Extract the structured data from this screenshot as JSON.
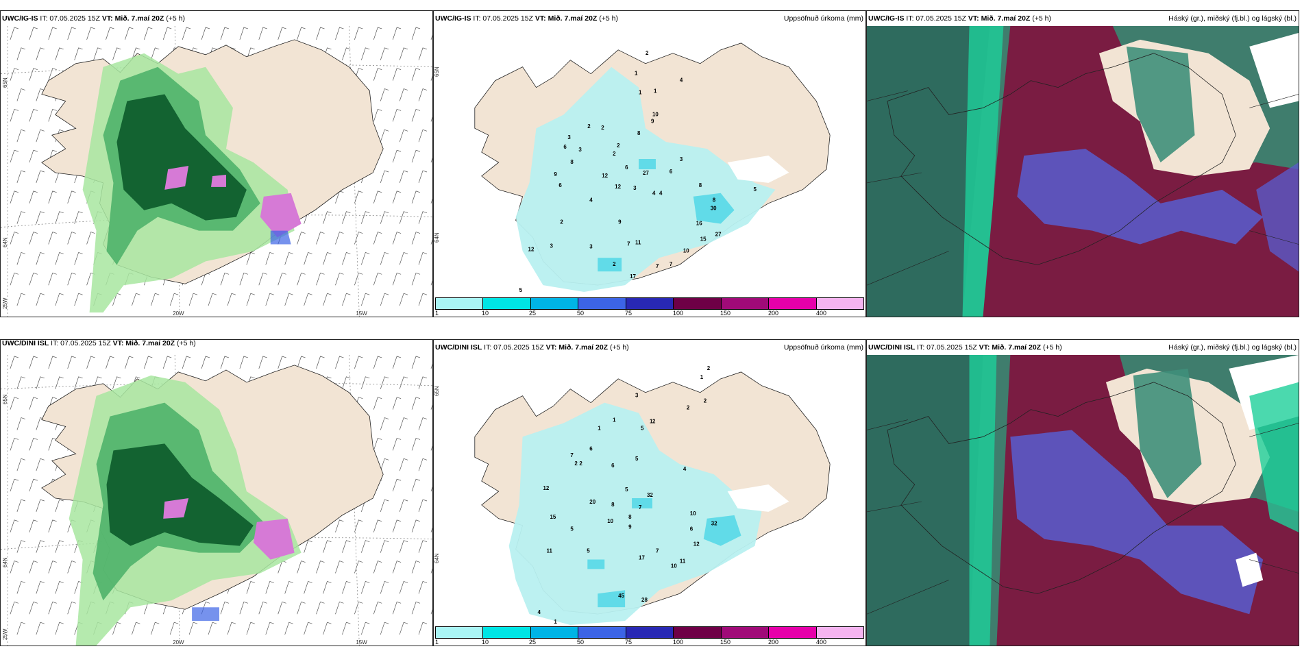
{
  "rows": [
    {
      "left": {
        "model": "UWC/IG-IS",
        "it": " IT: 07.05.2025 15Z ",
        "vt_label": "VT:",
        "vt": " Mið. 7.maí 20Z",
        "lead": " (+5 h)"
      },
      "mid": {
        "model": "UWC/IG-IS",
        "it": " IT: 07.05.2025 15Z ",
        "vt_label": "VT:",
        "vt": " Mið. 7.maí 20Z",
        "lead": " (+5 h)",
        "right": "Uppsöfnuð úrkoma (mm)"
      },
      "right": {
        "model": "UWC/IG-IS",
        "it": " IT: 07.05.2025 15Z ",
        "vt_label": "VT:",
        "vt": " Mið. 7.maí 20Z",
        "lead": " (+5 h)",
        "right": "Háský (gr.), miðský (fj.bl.) og lágský (bl.)"
      }
    },
    {
      "left": {
        "model": "UWC/DINI ISL",
        "it": " IT: 07.05.2025 15Z ",
        "vt_label": "VT:",
        "vt": " Mið. 7.maí 20Z",
        "lead": " (+5 h)"
      },
      "mid": {
        "model": "UWC/DINI ISL",
        "it": " IT: 07.05.2025 15Z ",
        "vt_label": "VT:",
        "vt": " Mið. 7.maí 20Z",
        "lead": " (+5 h)",
        "right": "Uppsöfnuð úrkoma (mm)"
      },
      "right": {
        "model": "UWC/DINI ISL",
        "it": " IT: 07.05.2025 15Z ",
        "vt_label": "VT:",
        "vt": " Mið. 7.maí 20Z",
        "lead": " (+5 h)",
        "right": "Háský (gr.), miðský (fj.bl.) og lágský (bl.)"
      }
    }
  ],
  "axis_labels": {
    "lat_65": "65N",
    "lat_64": "64N",
    "lon_25": "25W",
    "lon_20": "20W",
    "lon_15": "15W"
  },
  "colorbar": {
    "ticks": [
      "1",
      "10",
      "25",
      "50",
      "75",
      "100",
      "150",
      "200",
      "400"
    ],
    "colors": [
      "#aaf5f5",
      "#00e5e5",
      "#00b4e6",
      "#3c64e6",
      "#2828b4",
      "#6e0046",
      "#a00a78",
      "#e600aa",
      "#f5b4f0"
    ]
  },
  "colors": {
    "land": "#f2e4d4",
    "precip_light": "#b8f0f0",
    "precip_mid": "#4ad6e6",
    "hi_cloud": "#2e6b5e",
    "mid_cloud": "#7a1c42",
    "low_cloud": "#5a5ac8",
    "green_dark": "#0b5a2a",
    "green_light": "#a8e6a0",
    "purple": "#d67ad6"
  },
  "precip_labels_top": [
    "2",
    "1",
    "4",
    "1",
    "1",
    "10",
    "9",
    "2",
    "2",
    "8",
    "3",
    "6",
    "3",
    "2",
    "2",
    "6",
    "8",
    "3",
    "9",
    "12",
    "12",
    "6",
    "27",
    "6",
    "3",
    "4",
    "8",
    "4",
    "4",
    "8",
    "30",
    "15",
    "16",
    "27",
    "2",
    "9",
    "5",
    "12",
    "3",
    "3",
    "7",
    "11",
    "10",
    "7",
    "7",
    "2",
    "17",
    "5"
  ],
  "precip_labels_bottom": [
    "2",
    "1",
    "2",
    "3",
    "2",
    "1",
    "1",
    "1",
    "5",
    "2",
    "6",
    "5",
    "7",
    "6",
    "2",
    "2",
    "12",
    "4",
    "20",
    "32",
    "5",
    "8",
    "7",
    "10",
    "32",
    "15",
    "11",
    "5",
    "5",
    "9",
    "10",
    "8",
    "6",
    "12",
    "17",
    "7",
    "10",
    "11",
    "45",
    "28",
    "4",
    "1"
  ]
}
